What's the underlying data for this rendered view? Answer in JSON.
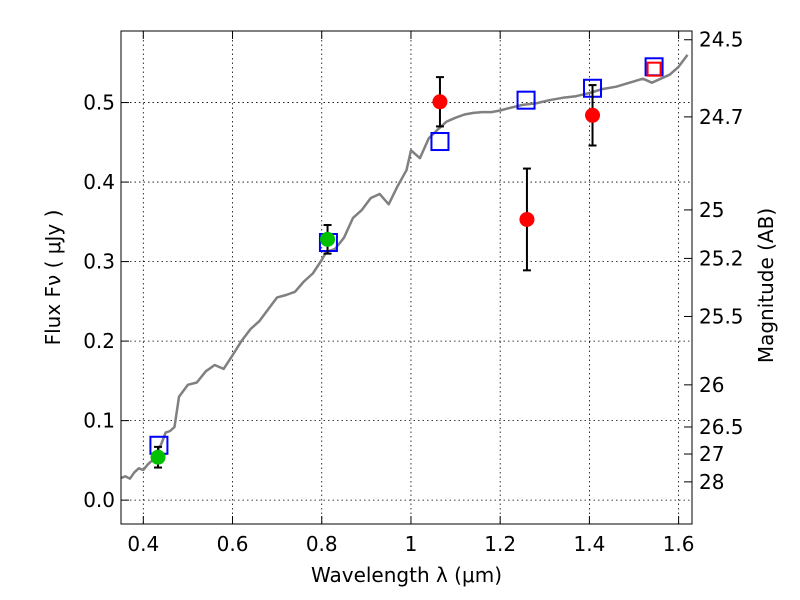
{
  "chart_data": {
    "type": "scatter",
    "xlabel": "Wavelength  λ (μm)",
    "ylabel": "Flux  Fν  ( μJy )",
    "ylabel_right": "Magnitude (AB)",
    "xlim": [
      0.35,
      1.63
    ],
    "ylim": [
      -0.03,
      0.59
    ],
    "grid": true,
    "x_ticks": [
      0.4,
      0.6,
      0.8,
      1.0,
      1.2,
      1.4,
      1.6
    ],
    "x_tick_labels": [
      "0.4",
      "0.6",
      "0.8",
      "1",
      "1.2",
      "1.4",
      "1.6"
    ],
    "y_ticks": [
      0.0,
      0.1,
      0.2,
      0.3,
      0.4,
      0.5
    ],
    "y_tick_labels": [
      "0.0",
      "0.1",
      "0.2",
      "0.3",
      "0.4",
      "0.5"
    ],
    "right_ticks": [
      {
        "label": "24.5",
        "flux": 0.579
      },
      {
        "label": "24.7",
        "flux": 0.482
      },
      {
        "label": "25",
        "flux": 0.365
      },
      {
        "label": "25.2",
        "flux": 0.304
      },
      {
        "label": "25.5",
        "flux": 0.231
      },
      {
        "label": "26",
        "flux": 0.145
      },
      {
        "label": "26.5",
        "flux": 0.092
      },
      {
        "label": "27",
        "flux": 0.058
      },
      {
        "label": "28",
        "flux": 0.023
      }
    ],
    "series": [
      {
        "kind": "line",
        "color": "#808080",
        "x": [
          0.35,
          0.36,
          0.37,
          0.38,
          0.39,
          0.4,
          0.41,
          0.42,
          0.43,
          0.44,
          0.45,
          0.46,
          0.47,
          0.48,
          0.5,
          0.52,
          0.54,
          0.56,
          0.58,
          0.6,
          0.62,
          0.64,
          0.66,
          0.68,
          0.7,
          0.72,
          0.74,
          0.76,
          0.78,
          0.8,
          0.81,
          0.83,
          0.85,
          0.87,
          0.89,
          0.91,
          0.93,
          0.95,
          0.97,
          0.99,
          1.0,
          1.02,
          1.04,
          1.06,
          1.08,
          1.1,
          1.12,
          1.14,
          1.16,
          1.18,
          1.2,
          1.22,
          1.25,
          1.28,
          1.31,
          1.34,
          1.37,
          1.4,
          1.43,
          1.46,
          1.49,
          1.52,
          1.54,
          1.56,
          1.58,
          1.6,
          1.62
        ],
        "values": [
          0.028,
          0.03,
          0.027,
          0.035,
          0.04,
          0.038,
          0.045,
          0.05,
          0.06,
          0.07,
          0.085,
          0.087,
          0.092,
          0.13,
          0.145,
          0.148,
          0.162,
          0.17,
          0.165,
          0.182,
          0.2,
          0.215,
          0.225,
          0.24,
          0.255,
          0.258,
          0.262,
          0.275,
          0.285,
          0.302,
          0.312,
          0.316,
          0.33,
          0.355,
          0.365,
          0.38,
          0.385,
          0.372,
          0.395,
          0.415,
          0.44,
          0.43,
          0.455,
          0.466,
          0.476,
          0.481,
          0.485,
          0.487,
          0.488,
          0.488,
          0.49,
          0.493,
          0.497,
          0.499,
          0.503,
          0.506,
          0.508,
          0.512,
          0.517,
          0.52,
          0.525,
          0.53,
          0.525,
          0.53,
          0.535,
          0.545,
          0.56
        ]
      },
      {
        "kind": "squares",
        "color": "#0000ff",
        "x": [
          0.435,
          0.815,
          1.065,
          1.258,
          1.407,
          1.545
        ],
        "values": [
          0.069,
          0.324,
          0.451,
          0.503,
          0.518,
          0.545
        ]
      },
      {
        "kind": "square",
        "color": "#ff0000",
        "x": [
          1.545
        ],
        "values": [
          0.542
        ]
      },
      {
        "kind": "points",
        "color": "#00c000",
        "x": [
          0.433,
          0.813
        ],
        "values": [
          0.054,
          0.328
        ],
        "err": [
          0.013,
          0.018
        ]
      },
      {
        "kind": "points",
        "color": "#ff0000",
        "x": [
          1.065,
          1.26,
          1.407
        ],
        "values": [
          0.501,
          0.353,
          0.484
        ],
        "err": [
          0.031,
          0.064,
          0.038
        ]
      }
    ]
  }
}
